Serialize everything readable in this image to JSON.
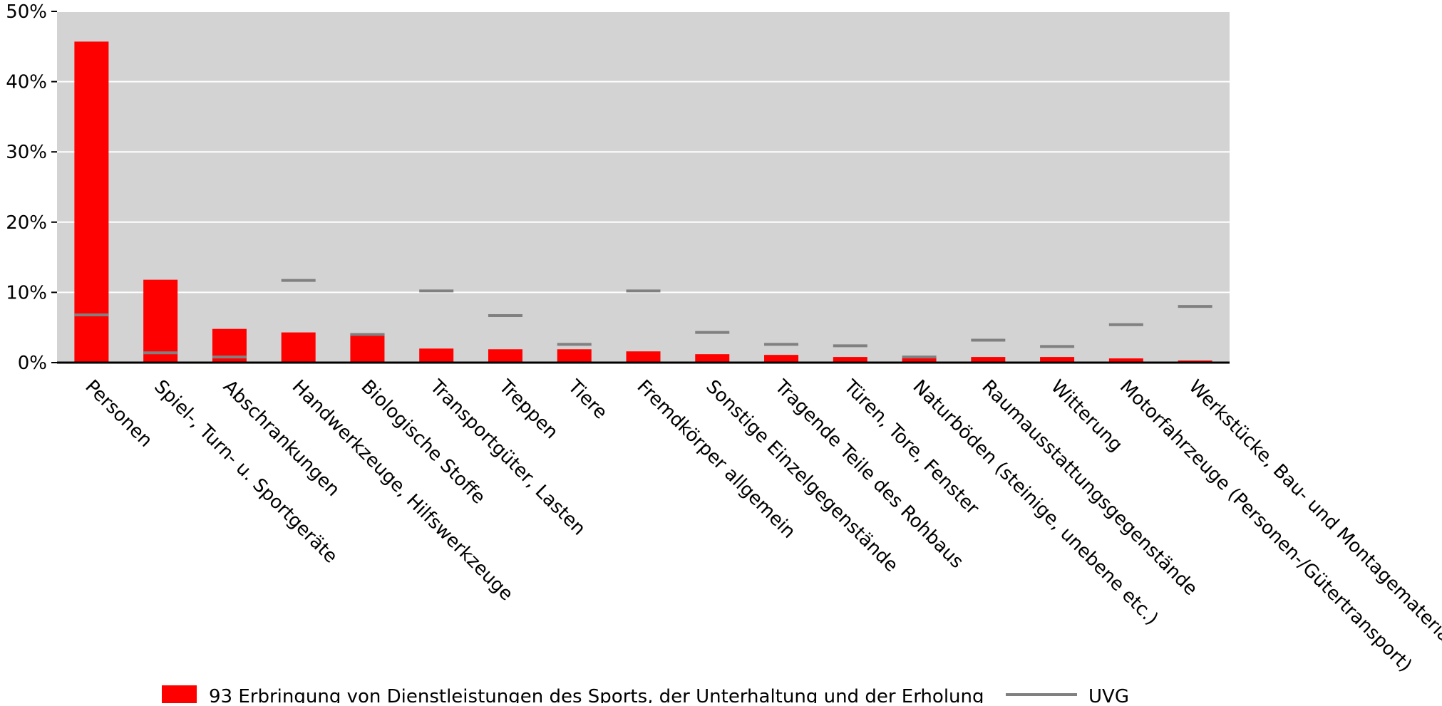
{
  "chart_data": {
    "type": "bar",
    "ylim": [
      0,
      50
    ],
    "y_ticks": [
      0,
      10,
      20,
      30,
      40,
      50
    ],
    "y_tick_labels": [
      "0%",
      "10%",
      "20%",
      "30%",
      "40%",
      "50%"
    ],
    "grid": true,
    "legend_position": "bottom",
    "categories": [
      "Personen",
      "Spiel-, Turn- u. Sportgeräte",
      "Abschrankungen",
      "Handwerkzeuge, Hilfswerkzeuge",
      "Biologische Stoffe",
      "Transportgüter, Lasten",
      "Treppen",
      "Tiere",
      "Fremdkörper allgemein",
      "Sonstige Einzelgegenstände",
      "Tragende Teile des Rohbaus",
      "Türen, Tore, Fenster",
      "Naturböden (steinige, unebene etc.)",
      "Raumausstattungsgegenstände",
      "Witterung",
      "Motorfahrzeuge (Personen-/Gütertransport)",
      "Werkstücke, Bau- und Montagematerialien"
    ],
    "series": [
      {
        "name": "93 Erbringung von Dienstleistungen des Sports, der Unterhaltung und der Erholung",
        "kind": "bar",
        "color": "#ff0000",
        "values": [
          45.7,
          11.8,
          4.8,
          4.3,
          4.2,
          2.0,
          1.9,
          1.9,
          1.6,
          1.2,
          1.1,
          0.8,
          0.7,
          0.8,
          0.8,
          0.6,
          0.3
        ]
      },
      {
        "name": "UVG",
        "kind": "marker",
        "color": "#808080",
        "values": [
          6.8,
          1.4,
          0.8,
          11.7,
          4.0,
          10.2,
          6.7,
          2.6,
          10.2,
          4.3,
          2.6,
          2.4,
          0.8,
          3.2,
          2.3,
          5.4,
          8.0
        ]
      }
    ]
  }
}
